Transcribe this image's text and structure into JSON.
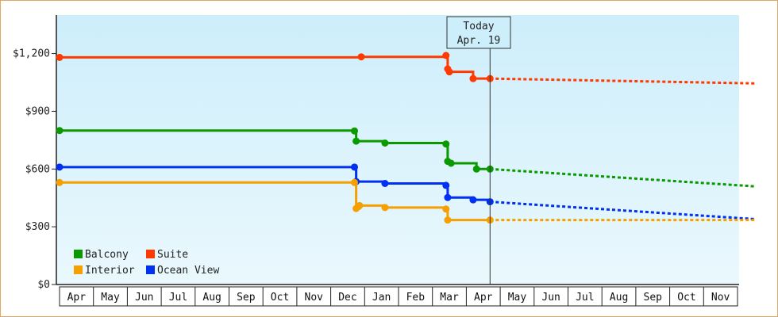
{
  "chart_data": {
    "type": "line",
    "step": true,
    "y_ticks": [
      "$0",
      "$300",
      "$600",
      "$900",
      "$1,200"
    ],
    "ylim": [
      0,
      1400
    ],
    "grid": false,
    "months": [
      "Apr",
      "May",
      "Jun",
      "Jul",
      "Aug",
      "Sep",
      "Oct",
      "Nov",
      "Dec",
      "Jan",
      "Feb",
      "Mar",
      "Apr",
      "May",
      "Jun",
      "Jul",
      "Aug",
      "Sep",
      "Oct",
      "Nov"
    ],
    "today_marker": {
      "line1": "Today",
      "line2": "Apr. 19",
      "x": 12.7
    },
    "legend_placement": "bottom-left",
    "series": [
      {
        "name": "Suite",
        "color": "#ff3a00",
        "points": [
          [
            0,
            1180
          ],
          [
            8.9,
            1183
          ],
          [
            11.4,
            1190
          ],
          [
            11.45,
            1120
          ],
          [
            11.5,
            1105
          ],
          [
            12.2,
            1070
          ],
          [
            12.7,
            1070
          ]
        ],
        "forecast": [
          [
            12.7,
            1070
          ],
          [
            20.5,
            1045
          ]
        ]
      },
      {
        "name": "Balcony",
        "color": "#0a9a00",
        "points": [
          [
            0,
            800
          ],
          [
            8.7,
            798
          ],
          [
            8.75,
            745
          ],
          [
            9.6,
            735
          ],
          [
            11.4,
            730
          ],
          [
            11.45,
            640
          ],
          [
            11.55,
            630
          ],
          [
            12.3,
            600
          ],
          [
            12.7,
            600
          ]
        ],
        "forecast": [
          [
            12.7,
            600
          ],
          [
            20.5,
            510
          ]
        ]
      },
      {
        "name": "Ocean View",
        "color": "#0030f0",
        "points": [
          [
            0,
            610
          ],
          [
            8.7,
            610
          ],
          [
            8.75,
            535
          ],
          [
            9.6,
            525
          ],
          [
            11.4,
            515
          ],
          [
            11.45,
            452
          ],
          [
            12.2,
            440
          ],
          [
            12.7,
            430
          ]
        ],
        "forecast": [
          [
            12.7,
            430
          ],
          [
            20.5,
            340
          ]
        ]
      },
      {
        "name": "Interior",
        "color": "#f5a000",
        "points": [
          [
            0,
            530
          ],
          [
            8.7,
            530
          ],
          [
            8.75,
            395
          ],
          [
            8.85,
            410
          ],
          [
            9.6,
            400
          ],
          [
            11.4,
            392
          ],
          [
            11.45,
            335
          ],
          [
            12.7,
            335
          ]
        ],
        "forecast": [
          [
            12.7,
            335
          ],
          [
            20.5,
            335
          ]
        ]
      }
    ],
    "legend": [
      {
        "name": "Balcony",
        "color": "#0a9a00"
      },
      {
        "name": "Suite",
        "color": "#ff3a00"
      },
      {
        "name": "Interior",
        "color": "#f5a000"
      },
      {
        "name": "Ocean View",
        "color": "#0030f0"
      }
    ]
  }
}
